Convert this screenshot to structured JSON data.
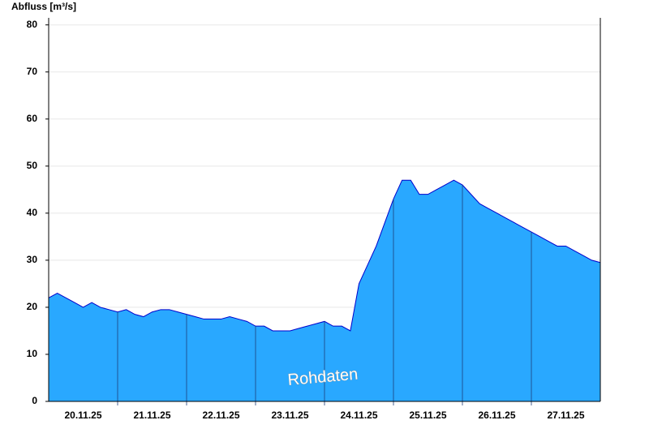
{
  "chart_data": {
    "type": "area",
    "title": "Abfluss [m³/s]",
    "annotation": "Rohdaten",
    "x": [
      0,
      3,
      6,
      9,
      12,
      15,
      18,
      21,
      24,
      27,
      30,
      33,
      36,
      39,
      42,
      45,
      48,
      51,
      54,
      57,
      60,
      63,
      66,
      69,
      72,
      75,
      78,
      81,
      84,
      87,
      90,
      93,
      96,
      99,
      102,
      105,
      108,
      111,
      114,
      117,
      120,
      123,
      126,
      129,
      132,
      135,
      138,
      141,
      144,
      147,
      150,
      153,
      156,
      159,
      162,
      165,
      168,
      171,
      174,
      177,
      180,
      183,
      186,
      189,
      192
    ],
    "series": [
      {
        "name": "Rohdaten",
        "color": "#29a8ff",
        "line_color": "#0000cc",
        "values": [
          22,
          23,
          22,
          21,
          20,
          21,
          20,
          19.5,
          19,
          19.5,
          18.5,
          18,
          19,
          19.5,
          19.5,
          19,
          18.5,
          18,
          17.5,
          17.5,
          17.5,
          18,
          17.5,
          17,
          16,
          16,
          15,
          15,
          15,
          15.5,
          16,
          16.5,
          17,
          16,
          16,
          15,
          25,
          29,
          33,
          38,
          43,
          47,
          47,
          44,
          44,
          45,
          46,
          47,
          46,
          44,
          42,
          41,
          40,
          39,
          38,
          37,
          36,
          35,
          34,
          33,
          33,
          32,
          31,
          30,
          29.5
        ]
      }
    ],
    "xlim": [
      0,
      192
    ],
    "xticks": [
      {
        "value": 12,
        "label": "20.11.25"
      },
      {
        "value": 36,
        "label": "21.11.25"
      },
      {
        "value": 60,
        "label": "22.11.25"
      },
      {
        "value": 84,
        "label": "23.11.25"
      },
      {
        "value": 108,
        "label": "24.11.25"
      },
      {
        "value": 132,
        "label": "25.11.25"
      },
      {
        "value": 156,
        "label": "26.11.25"
      },
      {
        "value": 180,
        "label": "27.11.25"
      }
    ],
    "xgrid_lines": [
      24,
      48,
      72,
      96,
      120,
      144,
      168
    ],
    "ylim": [
      0,
      81.5
    ],
    "yticks": [
      0,
      10,
      20,
      30,
      40,
      50,
      60,
      70,
      80
    ],
    "grid": true
  }
}
